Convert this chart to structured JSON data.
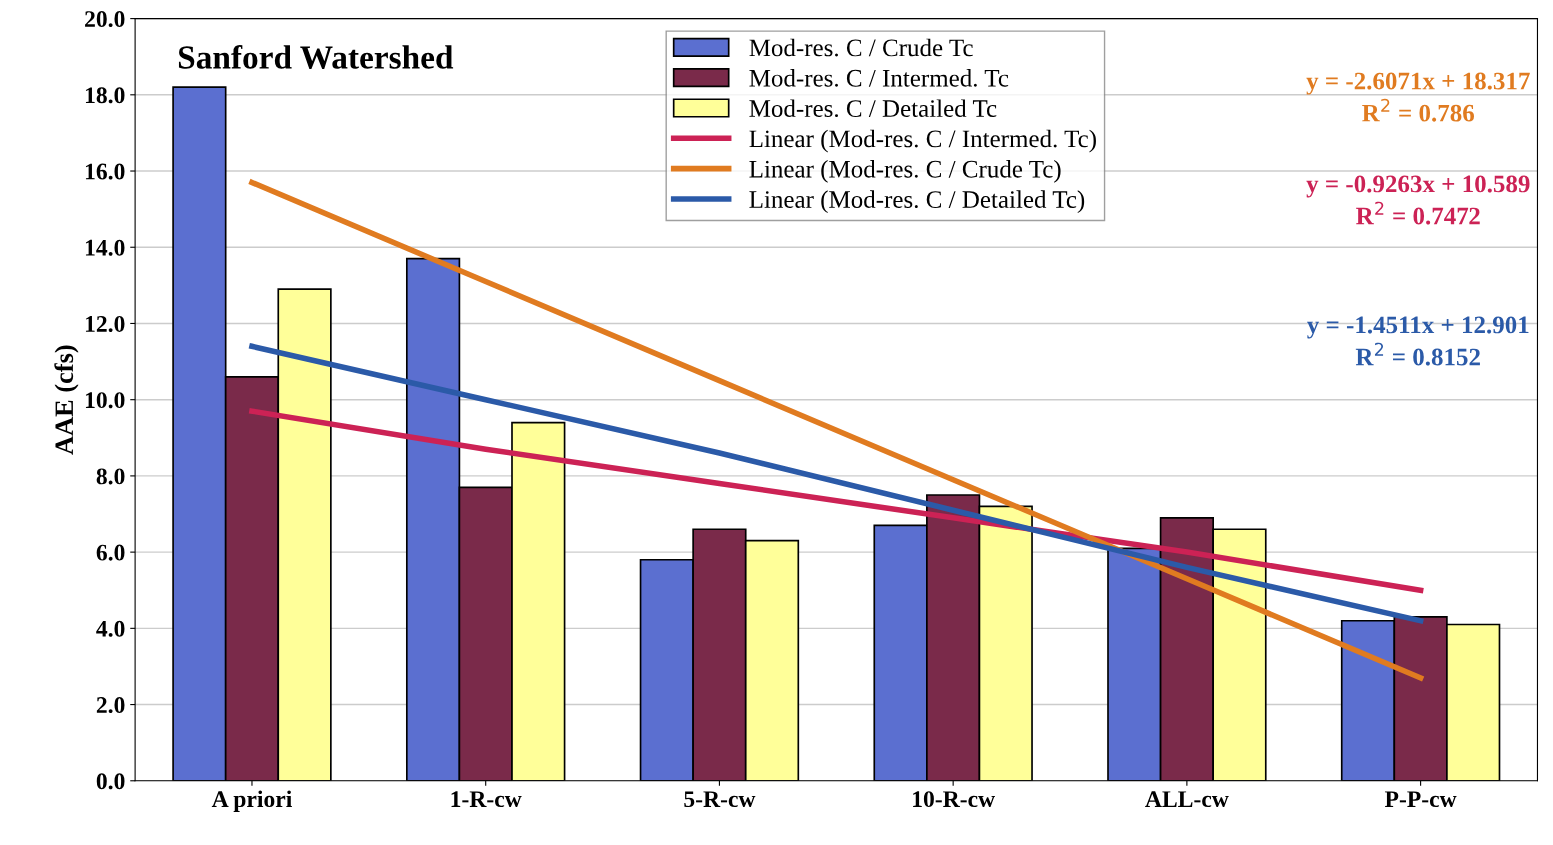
{
  "chart_data": {
    "type": "bar",
    "title": "Sanford Watershed",
    "ylabel": "AAE (cfs)",
    "categories": [
      "A priori",
      "1-R-cw",
      "5-R-cw",
      "10-R-cw",
      "ALL-cw",
      "P-P-cw"
    ],
    "series": [
      {
        "name": "Mod-res. C / Crude Tc",
        "color": "#5b6fd0",
        "values": [
          18.2,
          13.7,
          5.8,
          6.7,
          6.1,
          4.2
        ]
      },
      {
        "name": "Mod-res. C / Intermed. Tc",
        "color": "#7a2a4a",
        "values": [
          10.6,
          7.7,
          6.6,
          7.5,
          6.9,
          4.3
        ]
      },
      {
        "name": "Mod-res. C / Detailed Tc",
        "color": "#ffff99",
        "values": [
          12.9,
          9.4,
          6.3,
          7.2,
          6.6,
          4.1
        ]
      },
      {
        "name": "Linear (Mod-res. C / Intermed. Tc)",
        "type": "line",
        "color": "#cc2255",
        "values": [
          9.7,
          8.7,
          7.8,
          6.9,
          6.0,
          5.0
        ]
      },
      {
        "name": "Linear (Mod-res. C / Crude Tc)",
        "type": "line",
        "color": "#e07b20",
        "values": [
          15.7,
          13.1,
          10.5,
          7.9,
          5.3,
          2.7
        ]
      },
      {
        "name": "Linear (Mod-res. C / Detailed Tc)",
        "type": "line",
        "color": "#2b5aa8",
        "values": [
          11.4,
          10.0,
          8.6,
          7.1,
          5.6,
          4.2
        ]
      }
    ],
    "ylim": [
      0,
      20
    ],
    "yticks": [
      {
        "value": 0,
        "label": "0.0"
      },
      {
        "value": 2,
        "label": "2.0"
      },
      {
        "value": 4,
        "label": "4.0"
      },
      {
        "value": 6,
        "label": "6.0"
      },
      {
        "value": 8,
        "label": "8.0"
      },
      {
        "value": 10,
        "label": "10.0"
      },
      {
        "value": 12,
        "label": "12.0"
      },
      {
        "value": 14,
        "label": "14.0"
      },
      {
        "value": 16,
        "label": "16.0"
      },
      {
        "value": 18,
        "label": "18.0"
      },
      {
        "value": 20,
        "label": "20.0"
      }
    ],
    "annotations": [
      "y = -2.6071x + 18.317\nR$^{2}$ = 0.786",
      "y = -0.9263x + 10.589\nR$^{2}$ = 0.7472",
      "y = -1.4511x + 12.901\nR$^{2}$ = 0.8152"
    ],
    "grid": "y",
    "legend": "top",
    "marker": "none",
    "line_style": "solid"
  }
}
